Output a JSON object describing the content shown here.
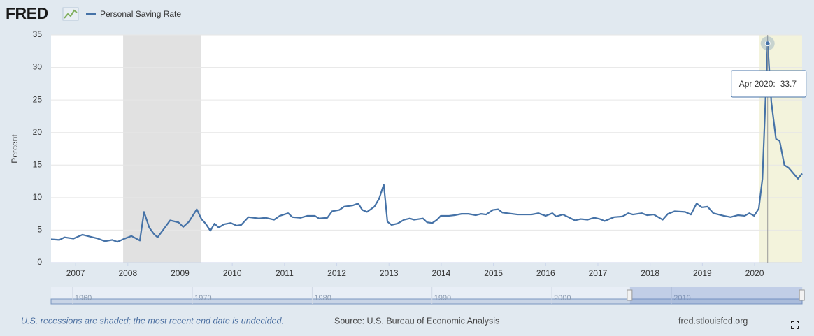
{
  "logo": "FRED",
  "chart_data": {
    "type": "line",
    "y_label": "Percent",
    "x": [
      2006.53,
      2006.69,
      2006.79,
      2006.96,
      2007.13,
      2007.43,
      2007.56,
      2007.7,
      2007.8,
      2007.94,
      2008.07,
      2008.23,
      2008.31,
      2008.41,
      2008.5,
      2008.57,
      2008.7,
      2008.81,
      2008.97,
      2009.06,
      2009.17,
      2009.32,
      2009.41,
      2009.49,
      2009.58,
      2009.66,
      2009.74,
      2009.84,
      2009.97,
      2010.08,
      2010.17,
      2010.31,
      2010.51,
      2010.64,
      2010.8,
      2010.91,
      2011.07,
      2011.15,
      2011.31,
      2011.44,
      2011.58,
      2011.66,
      2011.82,
      2011.91,
      2012.05,
      2012.14,
      2012.31,
      2012.41,
      2012.49,
      2012.58,
      2012.72,
      2012.81,
      2012.9,
      2012.97,
      2013.05,
      2013.16,
      2013.29,
      2013.4,
      2013.48,
      2013.65,
      2013.73,
      2013.83,
      2013.92,
      2013.99,
      2014.15,
      2014.26,
      2014.39,
      2014.52,
      2014.66,
      2014.76,
      2014.86,
      2014.99,
      2015.09,
      2015.17,
      2015.46,
      2015.73,
      2015.86,
      2016.0,
      2016.13,
      2016.2,
      2016.33,
      2016.46,
      2016.56,
      2016.67,
      2016.8,
      2016.93,
      2017.04,
      2017.13,
      2017.31,
      2017.47,
      2017.58,
      2017.67,
      2017.84,
      2017.94,
      2018.07,
      2018.24,
      2018.34,
      2018.47,
      2018.67,
      2018.78,
      2018.89,
      2018.99,
      2019.1,
      2019.21,
      2019.41,
      2019.54,
      2019.68,
      2019.81,
      2019.9,
      2019.99,
      2020.08,
      2020.15,
      2020.25,
      2020.32,
      2020.41,
      2020.48,
      2020.57,
      2020.65,
      2020.83,
      2020.91
    ],
    "series": [
      {
        "name": "Personal Saving Rate",
        "color": "#4572a7",
        "values": [
          3.6,
          3.5,
          3.9,
          3.7,
          4.3,
          3.7,
          3.3,
          3.5,
          3.2,
          3.7,
          4.1,
          3.4,
          7.8,
          5.4,
          4.4,
          3.9,
          5.3,
          6.5,
          6.2,
          5.5,
          6.3,
          8.2,
          6.7,
          6.0,
          4.9,
          6.0,
          5.4,
          5.9,
          6.1,
          5.7,
          5.8,
          7.0,
          6.8,
          6.9,
          6.6,
          7.2,
          7.6,
          7.0,
          6.9,
          7.2,
          7.2,
          6.8,
          6.9,
          7.9,
          8.1,
          8.6,
          8.8,
          9.1,
          8.1,
          7.8,
          8.6,
          9.8,
          12.0,
          6.3,
          5.8,
          6.0,
          6.6,
          6.8,
          6.6,
          6.8,
          6.2,
          6.1,
          6.6,
          7.2,
          7.2,
          7.3,
          7.5,
          7.5,
          7.3,
          7.5,
          7.4,
          8.1,
          8.2,
          7.7,
          7.4,
          7.4,
          7.6,
          7.2,
          7.6,
          7.1,
          7.4,
          6.9,
          6.5,
          6.7,
          6.6,
          6.9,
          6.7,
          6.4,
          7.0,
          7.1,
          7.6,
          7.4,
          7.6,
          7.3,
          7.4,
          6.6,
          7.5,
          7.9,
          7.8,
          7.4,
          9.1,
          8.5,
          8.6,
          7.6,
          7.2,
          7.0,
          7.3,
          7.2,
          7.6,
          7.2,
          8.3,
          12.9,
          33.7,
          24.7,
          19.0,
          18.7,
          15.0,
          14.6,
          12.9,
          13.7
        ]
      }
    ],
    "xlim": [
      2006.53,
      2020.91
    ],
    "xticks": [
      2007,
      2008,
      2009,
      2010,
      2011,
      2012,
      2013,
      2014,
      2015,
      2016,
      2017,
      2018,
      2019,
      2020
    ],
    "ylim": [
      0,
      35
    ],
    "yticks": [
      0,
      5,
      10,
      15,
      20,
      25,
      30,
      35
    ],
    "grid": true,
    "recessions": [
      {
        "start": 2007.91,
        "end": 2009.4,
        "color": "#e1e1e1"
      },
      {
        "start": 2020.08,
        "end": 2020.91,
        "color": "#f3f3dc"
      }
    ],
    "tooltip": {
      "label": "Apr 2020:",
      "value": 33.7
    }
  },
  "navigator": {
    "xlim": [
      1958.2,
      2020.9
    ],
    "xticks": [
      1960,
      1970,
      1980,
      1990,
      2000,
      2010
    ]
  },
  "footer": {
    "note": "U.S. recessions are shaded; the most recent end date is undecided.",
    "source": "Source: U.S. Bureau of Economic Analysis",
    "site": "fred.stlouisfed.org"
  }
}
